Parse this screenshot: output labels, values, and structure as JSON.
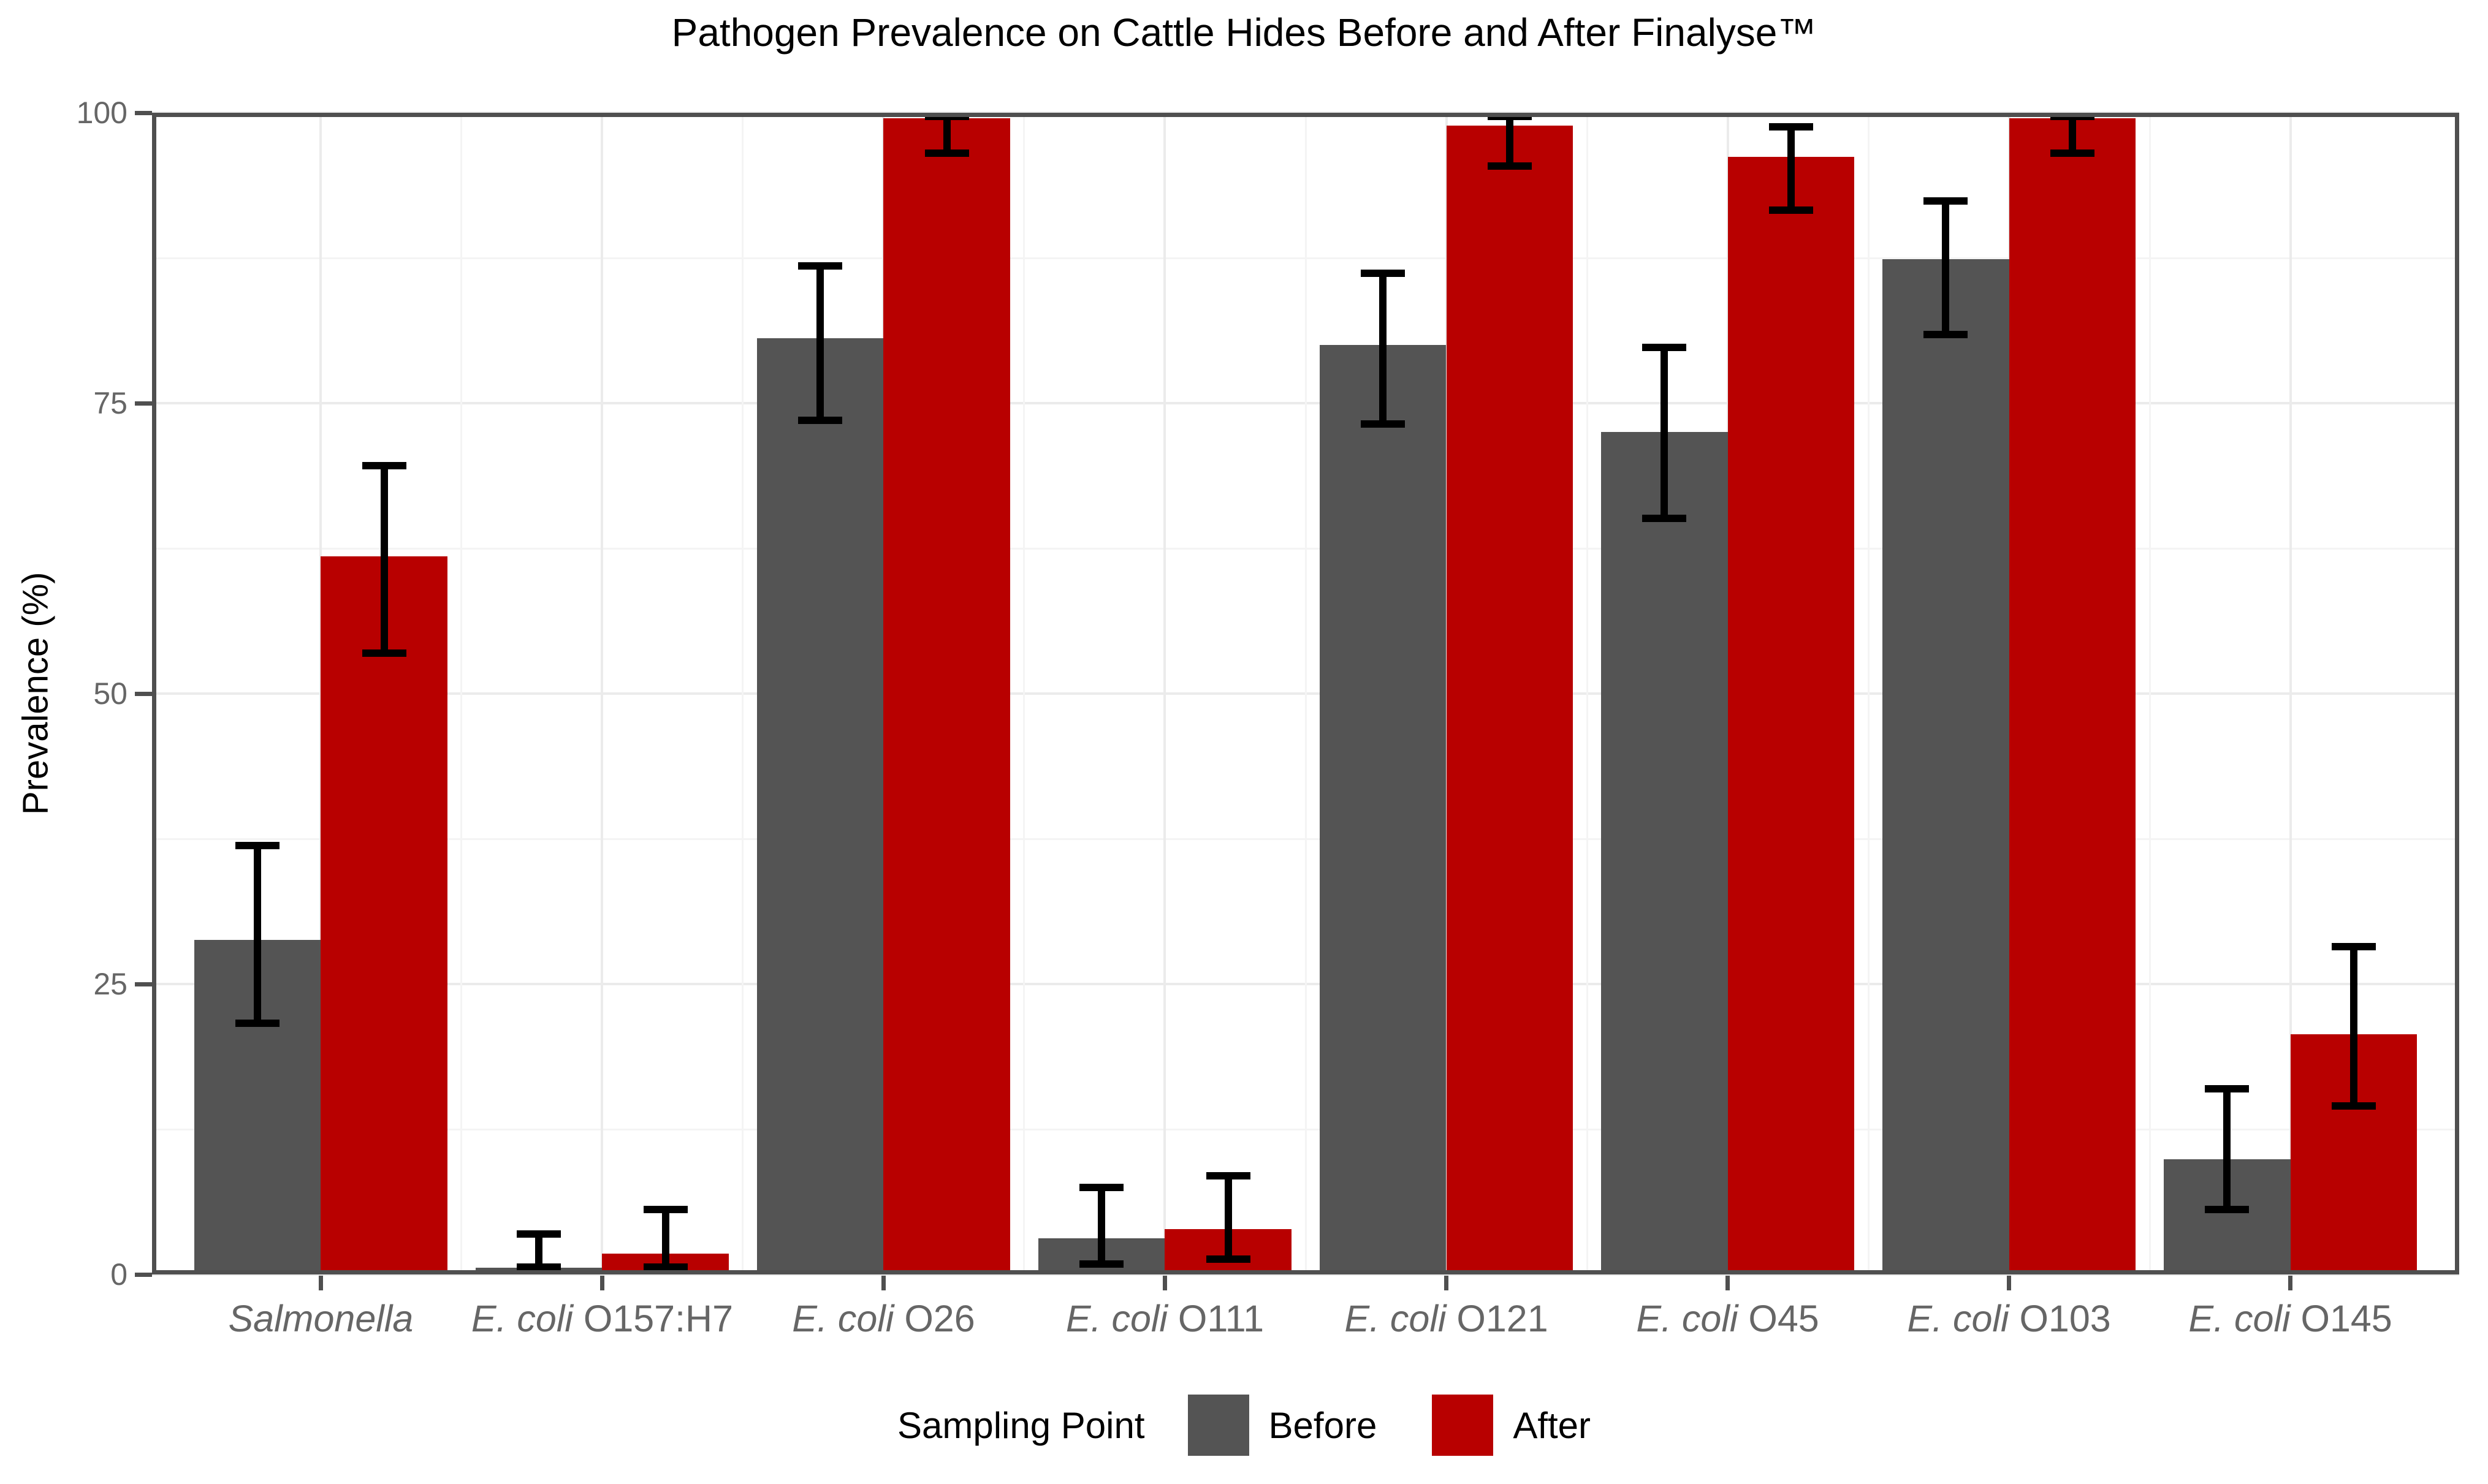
{
  "chart_data": {
    "type": "bar",
    "title": "Pathogen Prevalence on Cattle Hides Before and After Finalyse™",
    "xlabel": "",
    "ylabel": "Prevalence (%)",
    "ylim": [
      0,
      100
    ],
    "yticks": [
      0,
      25,
      50,
      75,
      100
    ],
    "yticks_minor": [
      12.5,
      37.5,
      62.5,
      87.5
    ],
    "grid": "major and minor gridlines on, light gray on white panel",
    "legend_title": "Sampling Point",
    "legend_position": "bottom",
    "categories": [
      {
        "italic": "Salmonella",
        "regular": ""
      },
      {
        "italic": "E. coli",
        "regular": " O157:H7"
      },
      {
        "italic": "E. coli",
        "regular": " O26"
      },
      {
        "italic": "E. coli",
        "regular": " O111"
      },
      {
        "italic": "E. coli",
        "regular": " O121"
      },
      {
        "italic": "E. coli",
        "regular": " O45"
      },
      {
        "italic": "E. coli",
        "regular": " O103"
      },
      {
        "italic": "E. coli",
        "regular": " O145"
      }
    ],
    "series": [
      {
        "name": "Before",
        "color": "#545454",
        "values": [
          28.8,
          0.6,
          80.6,
          3.1,
          80.0,
          72.5,
          87.4,
          9.9
        ],
        "ci_low": [
          21.6,
          0.1,
          73.5,
          0.9,
          73.2,
          65.1,
          80.9,
          5.6
        ],
        "ci_high": [
          36.9,
          3.5,
          86.8,
          7.5,
          86.2,
          79.8,
          92.4,
          16.0
        ]
      },
      {
        "name": "After",
        "color": "#B80000",
        "values": [
          61.8,
          1.8,
          99.5,
          3.9,
          98.9,
          96.2,
          99.5,
          20.7
        ],
        "ci_low": [
          53.5,
          0.2,
          96.5,
          1.3,
          95.4,
          91.6,
          96.5,
          14.5
        ],
        "ci_high": [
          69.6,
          5.6,
          100.0,
          8.5,
          100.0,
          98.8,
          100.0,
          28.2
        ]
      }
    ],
    "error_bars": "black, cap width about one third of bar width"
  },
  "colors": {
    "before_bar": "#545454",
    "after_bar": "#B80000",
    "error_bar": "#000000",
    "panel_border": "#4F4F4F",
    "tick_mark": "#4F4F4F",
    "grid_major": "#EBEBEB",
    "grid_minor": "#F4F4F4",
    "axis_text": "#666666",
    "title_text": "#000000",
    "background": "#FFFFFF"
  }
}
